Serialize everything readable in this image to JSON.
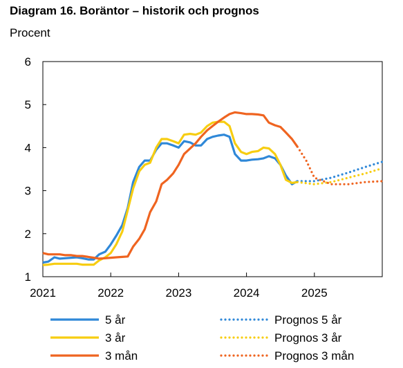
{
  "title": "Diagram 16. Boräntor – historik och prognos",
  "unit": "Procent",
  "chart_data": {
    "type": "line",
    "ylim": [
      1,
      6
    ],
    "xlim": [
      2021.0,
      2026.0
    ],
    "y_ticks": [
      "1",
      "2",
      "3",
      "4",
      "5",
      "6"
    ],
    "x_ticks": [
      "2021",
      "2022",
      "2023",
      "2024",
      "2025"
    ],
    "grid": false,
    "legend_position": "bottom",
    "series": [
      {
        "name": "5 år",
        "color": "#2f88d8",
        "style": "solid",
        "x": [
          2021.0,
          2021.08,
          2021.17,
          2021.25,
          2021.33,
          2021.42,
          2021.5,
          2021.58,
          2021.67,
          2021.75,
          2021.83,
          2021.92,
          2022.0,
          2022.08,
          2022.17,
          2022.25,
          2022.33,
          2022.42,
          2022.5,
          2022.58,
          2022.67,
          2022.75,
          2022.83,
          2022.92,
          2023.0,
          2023.08,
          2023.17,
          2023.25,
          2023.33,
          2023.42,
          2023.5,
          2023.58,
          2023.67,
          2023.75,
          2023.83,
          2023.92,
          2024.0,
          2024.08,
          2024.17,
          2024.25,
          2024.33,
          2024.42,
          2024.5,
          2024.58,
          2024.67,
          2024.75
        ],
        "y": [
          1.33,
          1.35,
          1.45,
          1.42,
          1.43,
          1.44,
          1.45,
          1.43,
          1.4,
          1.4,
          1.52,
          1.58,
          1.75,
          1.95,
          2.2,
          2.6,
          3.2,
          3.55,
          3.7,
          3.7,
          3.95,
          4.1,
          4.1,
          4.05,
          4.0,
          4.15,
          4.12,
          4.05,
          4.05,
          4.2,
          4.25,
          4.28,
          4.3,
          4.25,
          3.85,
          3.7,
          3.7,
          3.72,
          3.73,
          3.75,
          3.8,
          3.75,
          3.6,
          3.35,
          3.15,
          3.22
        ]
      },
      {
        "name": "3 år",
        "color": "#f7cd11",
        "style": "solid",
        "x": [
          2021.0,
          2021.08,
          2021.17,
          2021.25,
          2021.33,
          2021.42,
          2021.5,
          2021.58,
          2021.67,
          2021.75,
          2021.83,
          2021.92,
          2022.0,
          2022.08,
          2022.17,
          2022.25,
          2022.33,
          2022.42,
          2022.5,
          2022.58,
          2022.67,
          2022.75,
          2022.83,
          2022.92,
          2023.0,
          2023.08,
          2023.17,
          2023.25,
          2023.33,
          2023.42,
          2023.5,
          2023.58,
          2023.67,
          2023.75,
          2023.83,
          2023.92,
          2024.0,
          2024.08,
          2024.17,
          2024.25,
          2024.33,
          2024.42,
          2024.5,
          2024.58,
          2024.67,
          2024.75
        ],
        "y": [
          1.27,
          1.28,
          1.3,
          1.3,
          1.3,
          1.3,
          1.3,
          1.28,
          1.28,
          1.28,
          1.38,
          1.45,
          1.55,
          1.75,
          2.05,
          2.55,
          3.05,
          3.45,
          3.6,
          3.65,
          4.0,
          4.2,
          4.2,
          4.15,
          4.1,
          4.3,
          4.32,
          4.3,
          4.35,
          4.5,
          4.58,
          4.6,
          4.6,
          4.5,
          4.1,
          3.9,
          3.85,
          3.9,
          3.92,
          4.0,
          3.98,
          3.85,
          3.6,
          3.25,
          3.18,
          3.2
        ]
      },
      {
        "name": "3 mån",
        "color": "#ef6420",
        "style": "solid",
        "x": [
          2021.0,
          2021.08,
          2021.17,
          2021.25,
          2021.33,
          2021.42,
          2021.5,
          2021.58,
          2021.67,
          2021.75,
          2021.83,
          2021.92,
          2022.0,
          2022.08,
          2022.17,
          2022.25,
          2022.33,
          2022.42,
          2022.5,
          2022.58,
          2022.67,
          2022.75,
          2022.83,
          2022.92,
          2023.0,
          2023.08,
          2023.17,
          2023.25,
          2023.33,
          2023.42,
          2023.5,
          2023.58,
          2023.67,
          2023.75,
          2023.83,
          2023.92,
          2024.0,
          2024.08,
          2024.17,
          2024.25,
          2024.33,
          2024.42,
          2024.5,
          2024.58,
          2024.67,
          2024.75
        ],
        "y": [
          1.55,
          1.52,
          1.52,
          1.52,
          1.5,
          1.5,
          1.48,
          1.48,
          1.46,
          1.44,
          1.42,
          1.43,
          1.44,
          1.45,
          1.46,
          1.47,
          1.7,
          1.88,
          2.1,
          2.5,
          2.75,
          3.15,
          3.25,
          3.4,
          3.6,
          3.85,
          3.98,
          4.1,
          4.25,
          4.4,
          4.5,
          4.6,
          4.7,
          4.78,
          4.82,
          4.8,
          4.78,
          4.78,
          4.77,
          4.75,
          4.58,
          4.52,
          4.48,
          4.35,
          4.2,
          4.02
        ]
      },
      {
        "name": "Prognos 5 år",
        "color": "#2f88d8",
        "style": "dotted",
        "x": [
          2024.75,
          2025.0,
          2025.25,
          2025.5,
          2025.75,
          2026.0
        ],
        "y": [
          3.22,
          3.22,
          3.3,
          3.42,
          3.55,
          3.67
        ]
      },
      {
        "name": "Prognos 3 år",
        "color": "#f7cd11",
        "style": "dotted",
        "x": [
          2024.75,
          2025.0,
          2025.25,
          2025.5,
          2025.75,
          2026.0
        ],
        "y": [
          3.2,
          3.15,
          3.2,
          3.3,
          3.4,
          3.52
        ]
      },
      {
        "name": "Prognos 3 mån",
        "color": "#ef6420",
        "style": "dotted",
        "x": [
          2024.75,
          2024.88,
          2025.0,
          2025.25,
          2025.5,
          2025.75,
          2026.0
        ],
        "y": [
          4.02,
          3.7,
          3.3,
          3.15,
          3.15,
          3.2,
          3.22
        ]
      }
    ]
  }
}
